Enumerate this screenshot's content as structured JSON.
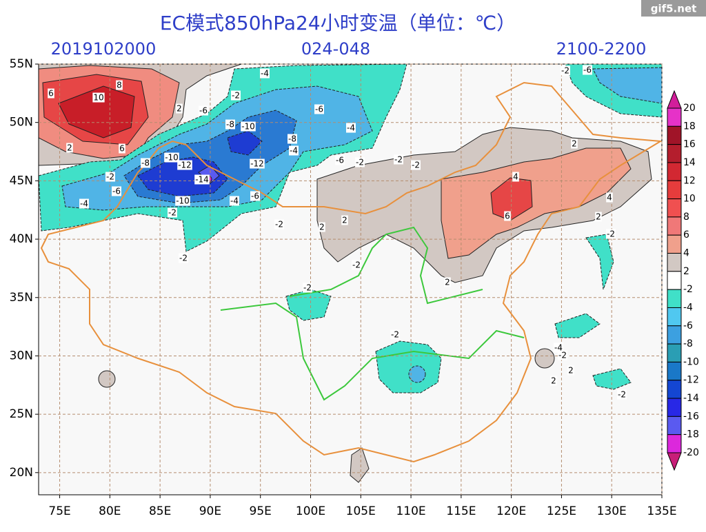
{
  "header": {
    "title": "EC模式850hPa24小时变温（单位：℃）",
    "init": "2019102000",
    "range": "024-048",
    "valid": "2100-2200"
  },
  "watermark": "gif5.net",
  "map": {
    "lon_range": [
      72.9,
      135
    ],
    "lat_range": [
      18.1,
      55
    ],
    "lon_ticks": [
      {
        "value": 75,
        "label": "75E"
      },
      {
        "value": 80,
        "label": "80E"
      },
      {
        "value": 85,
        "label": "85E"
      },
      {
        "value": 90,
        "label": "90E"
      },
      {
        "value": 95,
        "label": "95E"
      },
      {
        "value": 100,
        "label": "100E"
      },
      {
        "value": 105,
        "label": "105E"
      },
      {
        "value": 110,
        "label": "110E"
      },
      {
        "value": 115,
        "label": "115E"
      },
      {
        "value": 120,
        "label": "120E"
      },
      {
        "value": 125,
        "label": "125E"
      },
      {
        "value": 130,
        "label": "130E"
      },
      {
        "value": 135,
        "label": "135E"
      }
    ],
    "lat_ticks": [
      {
        "value": 20,
        "label": "20N"
      },
      {
        "value": 25,
        "label": "25N"
      },
      {
        "value": 30,
        "label": "30N"
      },
      {
        "value": 35,
        "label": "35N"
      },
      {
        "value": 40,
        "label": "40N"
      },
      {
        "value": 45,
        "label": "45N"
      },
      {
        "value": 50,
        "label": "50N"
      },
      {
        "value": 55,
        "label": "55N"
      }
    ],
    "contour_labels": [
      "6",
      "8",
      "10",
      "6",
      "2",
      "2",
      "-4",
      "-2",
      "-6",
      "-8",
      "-10",
      "-8",
      "-4",
      "-6",
      "-4",
      "-10",
      "-12",
      "-14",
      "-8",
      "-2",
      "-6",
      "-4",
      "-10",
      "-2",
      "-4",
      "-6",
      "-12",
      "-6",
      "-2",
      "-2",
      "-2",
      "2",
      "4",
      "6",
      "4",
      "2",
      "-2",
      "-2",
      "-6",
      "-2",
      "2",
      "2",
      "-2",
      "2",
      "-2",
      "-2",
      "-2",
      "-4",
      "-2",
      "2",
      "2",
      "-2"
    ]
  },
  "colorbar": {
    "levels": [
      20,
      18,
      16,
      14,
      12,
      10,
      8,
      6,
      4,
      2,
      -2,
      -4,
      -6,
      -8,
      -10,
      -12,
      -14,
      -16,
      -18,
      -20
    ],
    "colors": [
      "#d21e9b",
      "#e632c8",
      "#a01428",
      "#b41e2d",
      "#d22832",
      "#e63c3c",
      "#f05050",
      "#f07878",
      "#f0a08c",
      "#d2c8c3",
      "#ffffff",
      "#40e0c8",
      "#50c8f0",
      "#3ca0e0",
      "#2a9eb4",
      "#1a78c8",
      "#1446d2",
      "#2828e6",
      "#5a5af0",
      "#dc28dc",
      "#c81e78"
    ]
  }
}
